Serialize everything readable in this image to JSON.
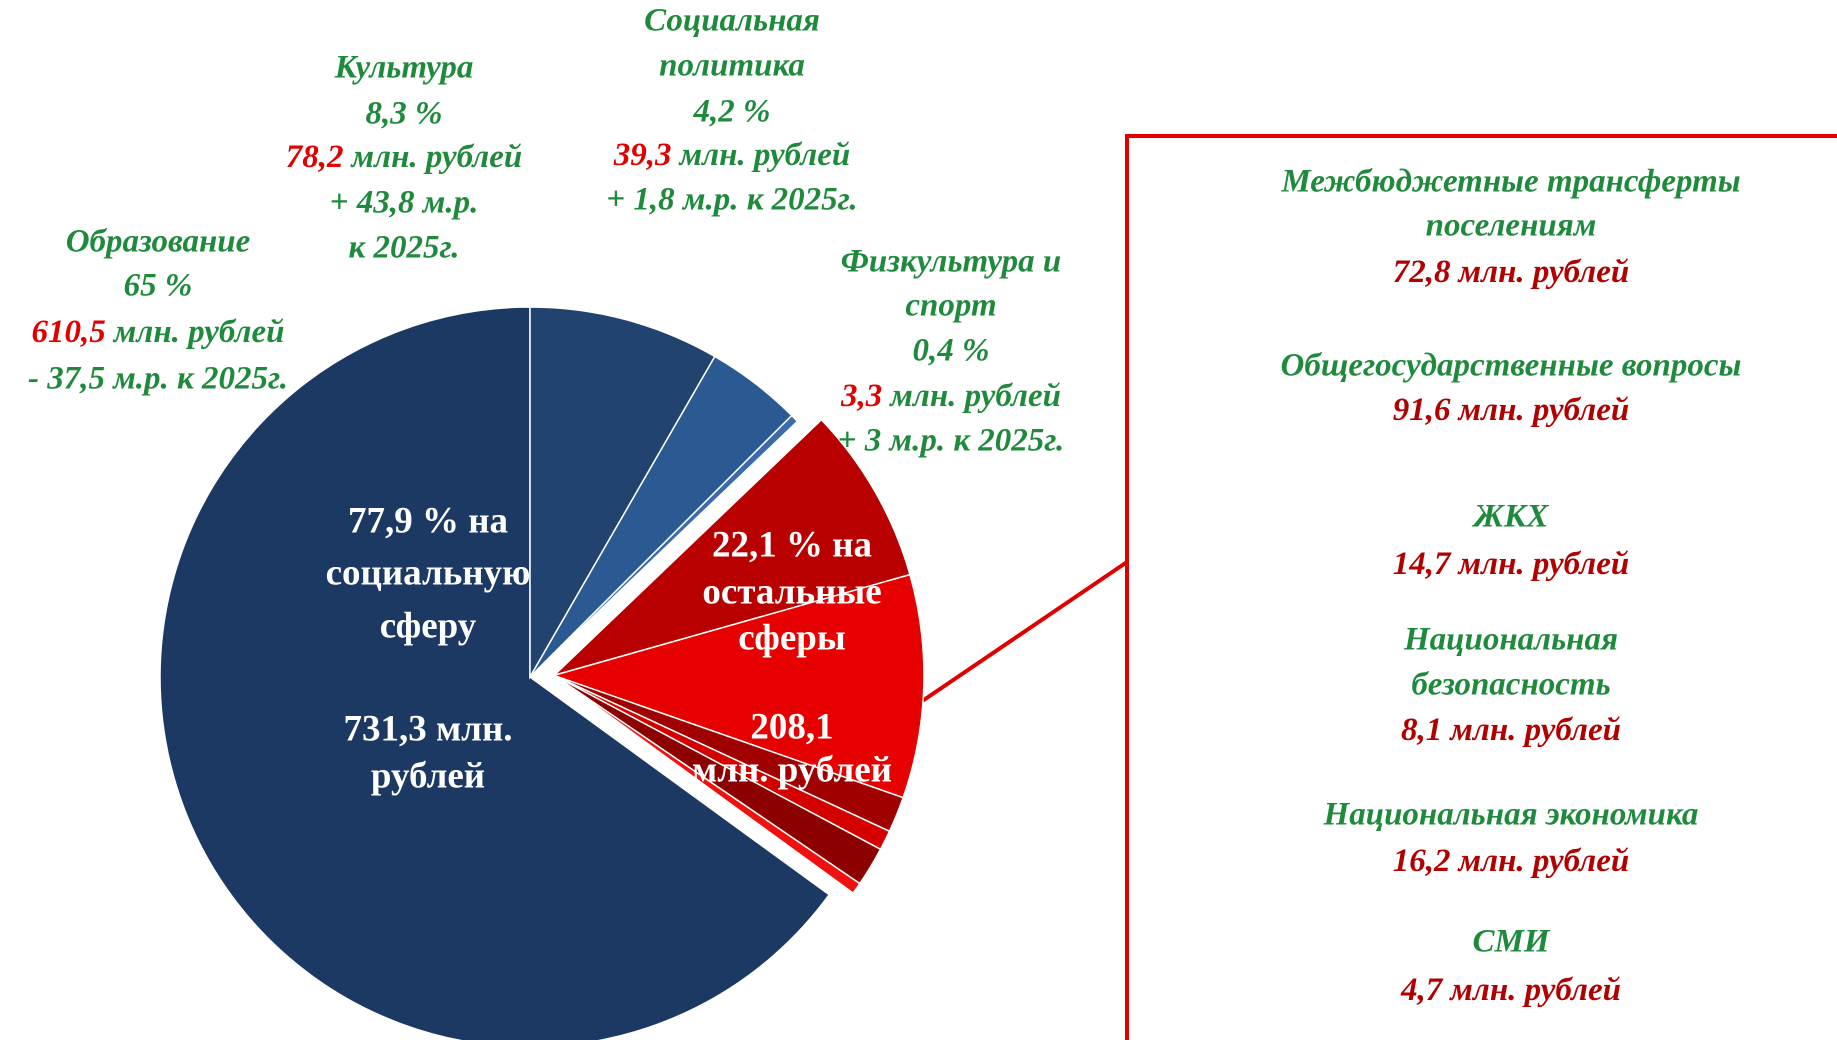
{
  "chart_data": {
    "type": "pie",
    "unit": "млн. рублей",
    "groups": [
      {
        "share_lines": [
          "77,9 % на",
          "социальную",
          "сферу"
        ],
        "amount_lines": [
          "731,3 млн.",
          "рублей"
        ],
        "items": [
          {
            "name": [
              "Образование"
            ],
            "percent": "65 %",
            "value": 610.5,
            "value_label": "610,5",
            "change": [
              "- 37,5 м.р. к 2025г."
            ],
            "color": "#1c3963"
          },
          {
            "name": [
              "Культура"
            ],
            "percent": "8,3 %",
            "value": 78.2,
            "value_label": "78,2",
            "change": [
              "+ 43,8 м.р.",
              "к 2025г."
            ],
            "color": "#22436f"
          },
          {
            "name": [
              "Социальная",
              "политика"
            ],
            "percent": "4,2 %",
            "value": 39.3,
            "value_label": "39,3",
            "change": [
              "+ 1,8 м.р. к 2025г."
            ],
            "color": "#2b5a93"
          },
          {
            "name": [
              "Физкультура и",
              "спорт"
            ],
            "percent": "0,4 %",
            "value": 3.3,
            "value_label": "3,3",
            "change": [
              "+ 3 м.р. к 2025г."
            ],
            "color": "#3b6ca8"
          }
        ]
      },
      {
        "share_lines": [
          "22,1 % на",
          "остальные",
          "сферы"
        ],
        "amount_lines": [
          "208,1",
          "млн. рублей"
        ],
        "items": [
          {
            "name": [
              "Межбюджетные трансферты",
              "поселениям"
            ],
            "value": 72.8,
            "value_label": "72,8",
            "color": "#b80000"
          },
          {
            "name": [
              "Общегосударственные вопросы"
            ],
            "value": 91.6,
            "value_label": "91,6",
            "color": "#e60000"
          },
          {
            "name": [
              "ЖКХ"
            ],
            "value": 14.7,
            "value_label": "14,7",
            "color": "#a00000"
          },
          {
            "name": [
              "Национальная",
              "безопасность"
            ],
            "value": 8.1,
            "value_label": "8,1",
            "color": "#d40000"
          },
          {
            "name": [
              "Национальная экономика"
            ],
            "value": 16.2,
            "value_label": "16,2",
            "color": "#8c0000"
          },
          {
            "name": [
              "СМИ"
            ],
            "value": 4.7,
            "value_label": "4,7",
            "color": "#f01010"
          }
        ]
      }
    ]
  }
}
